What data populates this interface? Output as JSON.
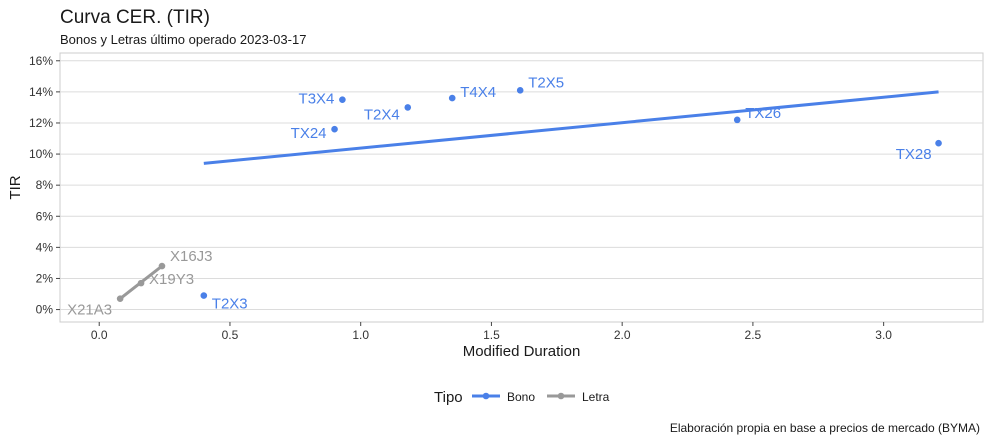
{
  "title": "Curva CER. (TIR)",
  "subtitle": "Bonos y Letras último operado 2023-03-17",
  "caption": "Elaboración propia en base a precios de mercado (BYMA)",
  "chart_data": {
    "type": "scatter",
    "xlabel": "Modified Duration",
    "ylabel": "TIR",
    "xlim": [
      -0.15,
      3.38
    ],
    "ylim": [
      -0.008,
      0.165
    ],
    "x_ticks": [
      0,
      0.5,
      1,
      1.5,
      2,
      2.5,
      3
    ],
    "x_tick_labels": [
      "0.0",
      "0.5",
      "1.0",
      "1.5",
      "2.0",
      "2.5",
      "3.0"
    ],
    "y_ticks": [
      0,
      0.02,
      0.04,
      0.06,
      0.08,
      0.1,
      0.12,
      0.14,
      0.16
    ],
    "y_tick_labels": [
      "0%",
      "2%",
      "4%",
      "6%",
      "8%",
      "10%",
      "12%",
      "14%",
      "16%"
    ],
    "grid": true,
    "legend": {
      "title": "Tipo",
      "placement": "bottom"
    },
    "series": [
      {
        "name": "Bono",
        "color": "#4A80E8",
        "points": [
          {
            "label": "T2X3",
            "x": 0.4,
            "y": 0.009
          },
          {
            "label": "TX24",
            "x": 0.9,
            "y": 0.116
          },
          {
            "label": "T3X4",
            "x": 0.93,
            "y": 0.135
          },
          {
            "label": "T2X4",
            "x": 1.18,
            "y": 0.13
          },
          {
            "label": "T4X4",
            "x": 1.35,
            "y": 0.136
          },
          {
            "label": "T2X5",
            "x": 1.61,
            "y": 0.141
          },
          {
            "label": "TX26",
            "x": 2.44,
            "y": 0.122
          },
          {
            "label": "TX28",
            "x": 3.21,
            "y": 0.107
          }
        ],
        "fit_line": {
          "x": [
            0.4,
            3.21
          ],
          "y": [
            0.094,
            0.14
          ]
        }
      },
      {
        "name": "Letra",
        "color": "#999999",
        "points": [
          {
            "label": "X21A3",
            "x": 0.08,
            "y": 0.007
          },
          {
            "label": "X19Y3",
            "x": 0.16,
            "y": 0.017
          },
          {
            "label": "X16J3",
            "x": 0.24,
            "y": 0.028
          }
        ],
        "fit_line": {
          "x": [
            0.08,
            0.24
          ],
          "y": [
            0.007,
            0.028
          ]
        }
      }
    ]
  }
}
